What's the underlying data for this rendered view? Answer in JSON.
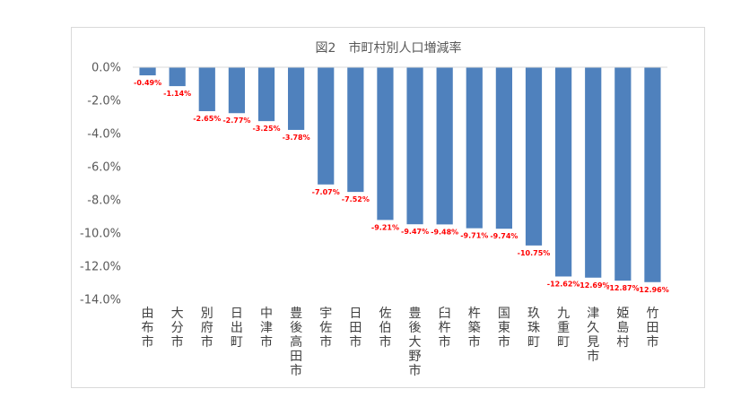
{
  "chart_data": {
    "type": "bar",
    "title": "図2　市町村別人口増減率",
    "categories": [
      "由布市",
      "大分市",
      "別府市",
      "日出町",
      "中津市",
      "豊後高田市",
      "宇佐市",
      "日田市",
      "佐伯市",
      "豊後大野市",
      "臼杵市",
      "杵築市",
      "国東市",
      "玖珠町",
      "九重町",
      "津久見市",
      "姫島村",
      "竹田市"
    ],
    "values": [
      -0.49,
      -1.14,
      -2.65,
      -2.77,
      -3.25,
      -3.78,
      -7.07,
      -7.52,
      -9.21,
      -9.47,
      -9.48,
      -9.71,
      -9.74,
      -10.75,
      -12.62,
      -12.69,
      -12.87,
      -12.96
    ],
    "data_labels": [
      "-0.49%",
      "-1.14%",
      "-2.65%",
      "-2.77%",
      "-3.25%",
      "-3.78%",
      "-7.07%",
      "-7.52%",
      "-9.21%",
      "-9.47%",
      "-9.48%",
      "-9.71%",
      "-9.74%",
      "-10.75%",
      "-12.62%",
      "-12.69%",
      "-12.87%",
      "-12.96%"
    ],
    "yticks": [
      0,
      -2,
      -4,
      -6,
      -8,
      -10,
      -12,
      -14
    ],
    "ytick_labels": [
      "0.0%",
      "-2.0%",
      "-4.0%",
      "-6.0%",
      "-8.0%",
      "-10.0%",
      "-12.0%",
      "-14.0%"
    ],
    "ylim": [
      -14,
      0
    ],
    "xlabel": "",
    "ylabel": "",
    "grid": false,
    "legend": "none",
    "colors": {
      "bar": "#4f81bd",
      "data_label": "#ff0000",
      "text": "#595959",
      "axis": "#d9d9d9"
    }
  }
}
